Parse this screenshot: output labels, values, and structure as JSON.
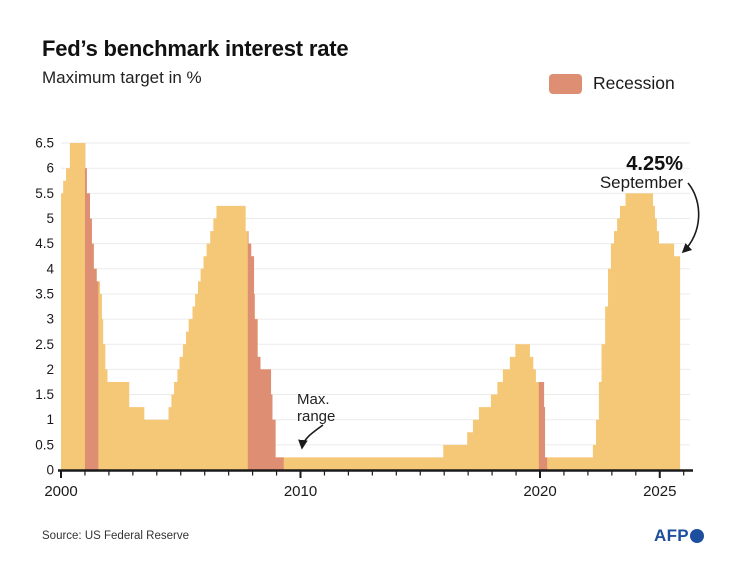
{
  "header": {
    "title": "Fed’s benchmark interest rate",
    "subtitle": "Maximum target in %"
  },
  "legend": {
    "label": "Recession"
  },
  "colors": {
    "rate_fill": "#F5C878",
    "recession_fill": "#DE8F73",
    "axis": "#1a1a1a",
    "grid": "#ebebeb",
    "text": "#1a1a1a",
    "afp_blue": "#1D4F9E"
  },
  "footer": {
    "source": "Source: US Federal Reserve",
    "logo_text": "AFP"
  },
  "chart_data": {
    "type": "area",
    "title": "Fed's benchmark interest rate",
    "ylabel": "Maximum target in %",
    "series_name": "Fed maximum target rate (%)",
    "x_axis": {
      "range": [
        2000,
        2026.3
      ],
      "labeled_ticks": [
        2000,
        2010,
        2020,
        2025
      ],
      "minor_tick_every_years": 1
    },
    "y_axis": {
      "min": 0,
      "max": 6.5,
      "step": 0.5
    },
    "grid": true,
    "steps": [
      [
        2000.0,
        5.5
      ],
      [
        2000.09,
        5.75
      ],
      [
        2000.21,
        6.0
      ],
      [
        2000.37,
        6.5
      ],
      [
        2001.01,
        6.0
      ],
      [
        2001.08,
        5.5
      ],
      [
        2001.21,
        5.0
      ],
      [
        2001.29,
        4.5
      ],
      [
        2001.37,
        4.0
      ],
      [
        2001.49,
        3.75
      ],
      [
        2001.63,
        3.5
      ],
      [
        2001.71,
        3.0
      ],
      [
        2001.76,
        2.5
      ],
      [
        2001.85,
        2.0
      ],
      [
        2001.94,
        1.75
      ],
      [
        2002.85,
        1.25
      ],
      [
        2003.48,
        1.0
      ],
      [
        2004.49,
        1.25
      ],
      [
        2004.61,
        1.5
      ],
      [
        2004.72,
        1.75
      ],
      [
        2004.86,
        2.0
      ],
      [
        2004.95,
        2.25
      ],
      [
        2005.09,
        2.5
      ],
      [
        2005.22,
        2.75
      ],
      [
        2005.33,
        3.0
      ],
      [
        2005.49,
        3.25
      ],
      [
        2005.6,
        3.5
      ],
      [
        2005.72,
        3.75
      ],
      [
        2005.83,
        4.0
      ],
      [
        2005.95,
        4.25
      ],
      [
        2006.08,
        4.5
      ],
      [
        2006.23,
        4.75
      ],
      [
        2006.36,
        5.0
      ],
      [
        2006.49,
        5.25
      ],
      [
        2007.71,
        4.75
      ],
      [
        2007.83,
        4.5
      ],
      [
        2007.94,
        4.25
      ],
      [
        2008.06,
        3.5
      ],
      [
        2008.09,
        3.0
      ],
      [
        2008.21,
        2.25
      ],
      [
        2008.33,
        2.0
      ],
      [
        2008.77,
        1.5
      ],
      [
        2008.83,
        1.0
      ],
      [
        2008.96,
        0.25
      ],
      [
        2015.96,
        0.5
      ],
      [
        2016.96,
        0.75
      ],
      [
        2017.2,
        1.0
      ],
      [
        2017.45,
        1.25
      ],
      [
        2017.95,
        1.5
      ],
      [
        2018.22,
        1.75
      ],
      [
        2018.45,
        2.0
      ],
      [
        2018.74,
        2.25
      ],
      [
        2018.97,
        2.5
      ],
      [
        2019.58,
        2.25
      ],
      [
        2019.72,
        2.0
      ],
      [
        2019.83,
        1.75
      ],
      [
        2020.17,
        1.25
      ],
      [
        2020.21,
        0.25
      ],
      [
        2022.21,
        0.5
      ],
      [
        2022.34,
        1.0
      ],
      [
        2022.46,
        1.75
      ],
      [
        2022.57,
        2.5
      ],
      [
        2022.72,
        3.25
      ],
      [
        2022.84,
        4.0
      ],
      [
        2022.96,
        4.5
      ],
      [
        2023.09,
        4.75
      ],
      [
        2023.22,
        5.0
      ],
      [
        2023.34,
        5.25
      ],
      [
        2023.57,
        5.5
      ],
      [
        2024.72,
        5.25
      ],
      [
        2024.8,
        5.0
      ],
      [
        2024.88,
        4.75
      ],
      [
        2024.97,
        4.5
      ],
      [
        2025.6,
        4.25
      ]
    ],
    "series_end_year": 2025.85,
    "recessions": [
      {
        "start": 2001.0,
        "end": 2001.56
      },
      {
        "start": 2007.8,
        "end": 2009.3
      },
      {
        "start": 2019.95,
        "end": 2020.3
      }
    ],
    "annotations": {
      "max_range": {
        "line1": "Max.",
        "line2": "range"
      },
      "latest": {
        "value": "4.25%",
        "label": "September"
      }
    }
  }
}
